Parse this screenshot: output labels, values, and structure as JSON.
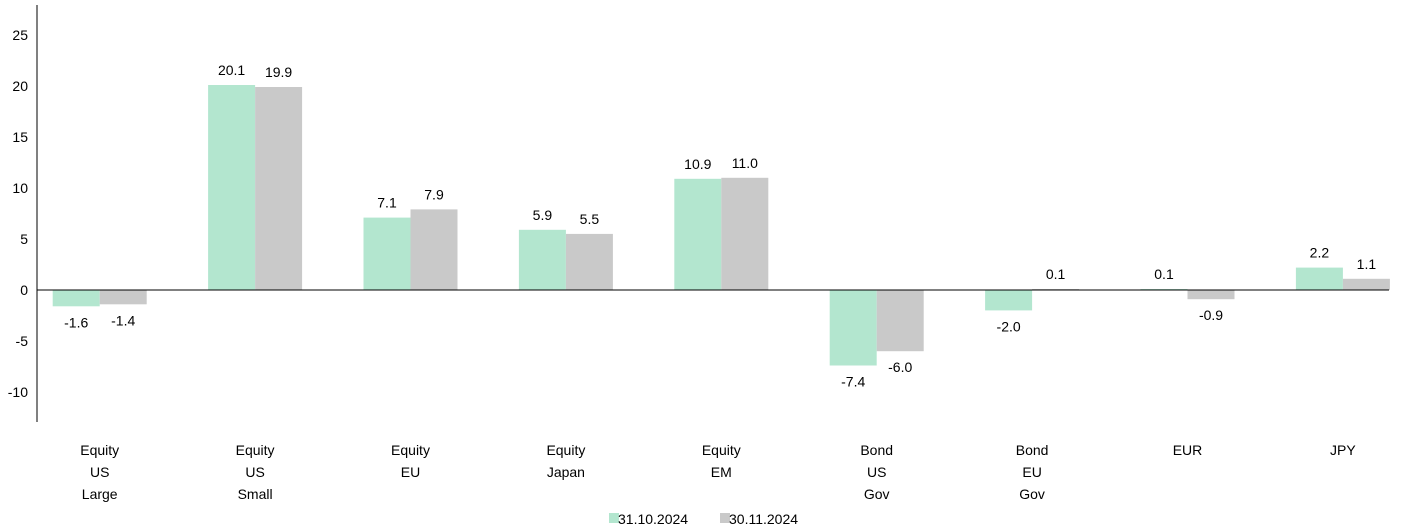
{
  "chart_data": {
    "type": "bar",
    "categories": [
      [
        "Equity",
        "US",
        "Large"
      ],
      [
        "Equity",
        "US",
        "Small"
      ],
      [
        "Equity",
        "EU"
      ],
      [
        "Equity",
        "Japan"
      ],
      [
        "Equity",
        "EM"
      ],
      [
        "Bond",
        "US",
        "Gov"
      ],
      [
        "Bond",
        "EU",
        "Gov"
      ],
      [
        "EUR"
      ],
      [
        "JPY"
      ]
    ],
    "series": [
      {
        "name": "31.10.2024",
        "color": "#b3e6cf",
        "values": [
          -1.6,
          20.1,
          7.1,
          5.9,
          10.9,
          -7.4,
          -2.0,
          0.1,
          2.2
        ],
        "labels": [
          "-1.6",
          "20.1",
          "7.1",
          "5.9",
          "10.9",
          "-7.4",
          "-2.0",
          "0.1",
          "2.2"
        ]
      },
      {
        "name": "30.11.2024",
        "color": "#c9c9c9",
        "values": [
          -1.4,
          19.9,
          7.9,
          5.5,
          11.0,
          -6.0,
          0.1,
          -0.9,
          1.1
        ],
        "labels": [
          "-1.4",
          "19.9",
          "7.9",
          "5.5",
          "11.0",
          "-6.0",
          "0.1",
          "-0.9",
          "1.1"
        ]
      }
    ],
    "yticks": [
      25,
      20,
      15,
      10,
      5,
      0,
      -5,
      -10
    ],
    "ylim": [
      -13,
      28
    ],
    "grid": false,
    "legend_position": "bottom-center",
    "title": "",
    "xlabel": "",
    "ylabel": ""
  }
}
